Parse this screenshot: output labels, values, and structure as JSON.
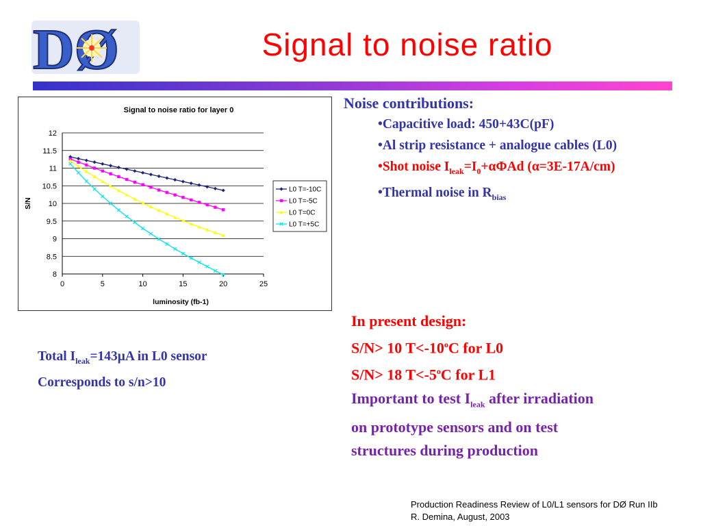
{
  "slide": {
    "title": "Signal to noise ratio",
    "logo_text": "DØ"
  },
  "noise": {
    "heading": "Noise contributions:",
    "bullet": "•",
    "cap": "Capacitive load: 450+43C(pF)",
    "al": "Al strip resistance + analogue cables (L0)",
    "shot_pre": "Shot noise I",
    "shot_sub1": "leak",
    "shot_mid": "=I",
    "shot_sub2": "0",
    "shot_post": "+αΦAd (α=3E-17A/cm)",
    "thermal_pre": "Thermal noise in R",
    "thermal_sub": "bias"
  },
  "total": {
    "pre": "Total I",
    "sub": "leak",
    "post": "=143μA in L0 sensor",
    "line2": "Corresponds to s/n>10"
  },
  "design": {
    "line1": "In present design:",
    "line2_pre": "S/N> 10 T<-10",
    "line2_sup": "o",
    "line2_post": "C for L0",
    "line3_pre": "S/N> 18 T<-5",
    "line3_sup": "o",
    "line3_post": "C for L1",
    "line4_pre": "Important to test I",
    "line4_sub": "leak",
    "line4_post": " after irradiation",
    "line5": "on prototype sensors  and on test",
    "line6": "structures during production"
  },
  "footer": {
    "line1": "Production Readiness Review of L0/L1 sensors for DØ Run IIb",
    "line2": "R. Demina, August, 2003"
  },
  "chart_data": {
    "type": "line",
    "title": "Signal to noise ratio for layer 0",
    "xlabel": "luminosity (fb-1)",
    "ylabel": "S/N",
    "xlim": [
      0,
      25
    ],
    "ylim": [
      8,
      12
    ],
    "xticks": [
      0,
      5,
      10,
      15,
      20,
      25
    ],
    "yticks": [
      8,
      8.5,
      9,
      9.5,
      10,
      10.5,
      11,
      11.5,
      12
    ],
    "grid": "horizontal",
    "legend_position": "right",
    "series": [
      {
        "name": "L0 T=-10C",
        "color": "#1a237e",
        "marker": "diamond",
        "x": [
          1,
          2,
          3,
          4,
          5,
          6,
          7,
          8,
          9,
          10,
          11,
          12,
          13,
          14,
          15,
          16,
          17,
          18,
          19,
          20
        ],
        "y": [
          11.32,
          11.27,
          11.22,
          11.17,
          11.12,
          11.07,
          11.02,
          10.97,
          10.92,
          10.87,
          10.82,
          10.77,
          10.72,
          10.67,
          10.62,
          10.57,
          10.52,
          10.47,
          10.42,
          10.37
        ]
      },
      {
        "name": "L0 T=-5C",
        "color": "#ff00ff",
        "marker": "square",
        "x": [
          1,
          2,
          3,
          4,
          5,
          6,
          7,
          8,
          9,
          10,
          11,
          12,
          13,
          14,
          15,
          16,
          17,
          18,
          19,
          20
        ],
        "y": [
          11.26,
          11.17,
          11.09,
          11.0,
          10.92,
          10.84,
          10.76,
          10.68,
          10.6,
          10.53,
          10.46,
          10.38,
          10.31,
          10.24,
          10.17,
          10.1,
          10.03,
          9.96,
          9.89,
          9.82
        ]
      },
      {
        "name": "L0 T=0C",
        "color": "#ffff00",
        "marker": "triangle",
        "x": [
          1,
          2,
          3,
          4,
          5,
          6,
          7,
          8,
          9,
          10,
          11,
          12,
          13,
          14,
          15,
          16,
          17,
          18,
          19,
          20
        ],
        "y": [
          11.21,
          11.05,
          10.9,
          10.76,
          10.62,
          10.49,
          10.36,
          10.24,
          10.12,
          10.01,
          9.9,
          9.8,
          9.7,
          9.6,
          9.51,
          9.42,
          9.33,
          9.25,
          9.17,
          9.09
        ]
      },
      {
        "name": "L0 T=+5C",
        "color": "#00e5ee",
        "marker": "x",
        "x": [
          1,
          2,
          3,
          4,
          5,
          6,
          7,
          8,
          9,
          10,
          11,
          12,
          13,
          14,
          15,
          16,
          17,
          18,
          19,
          20
        ],
        "y": [
          11.12,
          10.87,
          10.63,
          10.41,
          10.2,
          10.0,
          9.81,
          9.63,
          9.46,
          9.29,
          9.14,
          8.99,
          8.85,
          8.71,
          8.58,
          8.45,
          8.33,
          8.21,
          8.09,
          7.98
        ]
      }
    ]
  }
}
